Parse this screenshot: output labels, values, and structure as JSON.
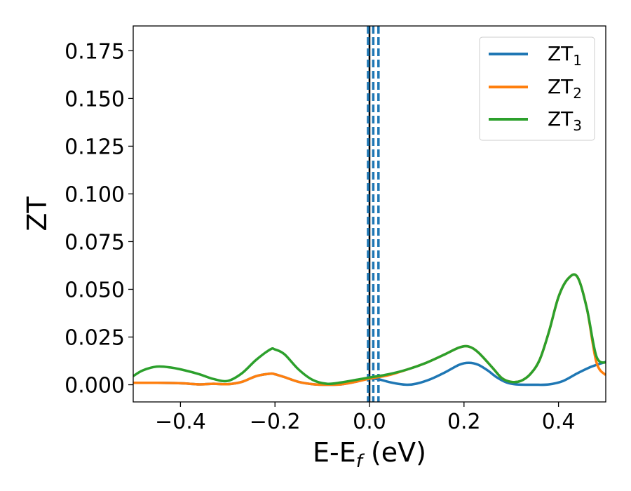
{
  "chart_data": {
    "type": "line",
    "xlabel": "E-E",
    "xlabel_sub": "f",
    "xlabel_suffix": " (eV)",
    "ylabel": "ZT",
    "xlim": [
      -0.5,
      0.5
    ],
    "ylim": [
      -0.009,
      0.188
    ],
    "x_ticks": [
      -0.4,
      -0.2,
      0.0,
      0.2,
      0.4
    ],
    "x_tick_labels": [
      "−0.4",
      "−0.2",
      "0.0",
      "0.2",
      "0.4"
    ],
    "y_ticks": [
      0.0,
      0.025,
      0.05,
      0.075,
      0.1,
      0.125,
      0.15,
      0.175
    ],
    "y_tick_labels": [
      "0.000",
      "0.025",
      "0.050",
      "0.075",
      "0.100",
      "0.125",
      "0.150",
      "0.175"
    ],
    "grid": false,
    "legend_position": "top-right",
    "vertical_lines": [
      {
        "x": 0.0,
        "style": "solid",
        "color": "#000000"
      },
      {
        "x": -0.003,
        "style": "dashed",
        "color": "#1f77b4"
      },
      {
        "x": 0.008,
        "style": "dashed",
        "color": "#1f77b4"
      },
      {
        "x": 0.019,
        "style": "dashed",
        "color": "#1f77b4"
      }
    ],
    "series": [
      {
        "name": "ZT",
        "subscript": "1",
        "color": "#1f77b4",
        "x": [
          -0.5,
          -0.45,
          -0.4,
          -0.36,
          -0.33,
          -0.3,
          -0.27,
          -0.24,
          -0.21,
          -0.2,
          -0.18,
          -0.15,
          -0.12,
          -0.09,
          -0.06,
          -0.03,
          0.0,
          0.02,
          0.04,
          0.06,
          0.08,
          0.1,
          0.13,
          0.16,
          0.19,
          0.21,
          0.23,
          0.25,
          0.27,
          0.29,
          0.31,
          0.35,
          0.38,
          0.41,
          0.44,
          0.47,
          0.5
        ],
        "y": [
          0.001,
          0.001,
          0.0008,
          0.0002,
          0.0005,
          0.0003,
          0.0015,
          0.0045,
          0.0058,
          0.0055,
          0.004,
          0.0015,
          0.0003,
          0.0,
          0.0002,
          0.0015,
          0.0032,
          0.0028,
          0.0015,
          0.0005,
          0.0,
          0.0006,
          0.003,
          0.0065,
          0.0105,
          0.0115,
          0.0105,
          0.0075,
          0.0038,
          0.0012,
          0.0002,
          0.0,
          0.0002,
          0.002,
          0.006,
          0.0095,
          0.012
        ]
      },
      {
        "name": "ZT",
        "subscript": "2",
        "color": "#ff7f0e",
        "x": [
          -0.5,
          -0.45,
          -0.4,
          -0.36,
          -0.33,
          -0.3,
          -0.27,
          -0.24,
          -0.21,
          -0.2,
          -0.18,
          -0.15,
          -0.12,
          -0.09,
          -0.06,
          -0.03,
          0.0,
          0.04,
          0.08,
          0.12,
          0.16,
          0.19,
          0.21,
          0.23,
          0.26,
          0.28,
          0.3,
          0.32,
          0.34,
          0.36,
          0.38,
          0.4,
          0.42,
          0.44,
          0.46,
          0.48,
          0.5
        ],
        "y": [
          0.001,
          0.001,
          0.0008,
          0.0002,
          0.0005,
          0.0003,
          0.0015,
          0.0045,
          0.0058,
          0.0055,
          0.004,
          0.0015,
          0.0003,
          0.0,
          0.0002,
          0.0015,
          0.0032,
          0.005,
          0.008,
          0.0115,
          0.016,
          0.0195,
          0.02,
          0.017,
          0.009,
          0.0035,
          0.0015,
          0.002,
          0.0055,
          0.013,
          0.028,
          0.046,
          0.0555,
          0.0565,
          0.04,
          0.012,
          0.005
        ]
      },
      {
        "name": "ZT",
        "subscript": "3",
        "color": "#2ca02c",
        "x": [
          -0.5,
          -0.48,
          -0.45,
          -0.42,
          -0.39,
          -0.36,
          -0.33,
          -0.3,
          -0.27,
          -0.24,
          -0.21,
          -0.2,
          -0.18,
          -0.15,
          -0.12,
          -0.09,
          -0.06,
          -0.03,
          0.0,
          0.04,
          0.08,
          0.12,
          0.16,
          0.19,
          0.21,
          0.23,
          0.26,
          0.28,
          0.3,
          0.32,
          0.34,
          0.36,
          0.38,
          0.4,
          0.42,
          0.44,
          0.46,
          0.48,
          0.5
        ],
        "y": [
          0.0045,
          0.0075,
          0.0095,
          0.009,
          0.0075,
          0.0055,
          0.003,
          0.002,
          0.006,
          0.013,
          0.0185,
          0.0185,
          0.016,
          0.008,
          0.0025,
          0.0005,
          0.0012,
          0.0025,
          0.0038,
          0.0055,
          0.008,
          0.0115,
          0.016,
          0.0195,
          0.02,
          0.017,
          0.009,
          0.0035,
          0.0015,
          0.002,
          0.0055,
          0.013,
          0.028,
          0.046,
          0.0555,
          0.0565,
          0.04,
          0.015,
          0.0115
        ]
      }
    ]
  }
}
